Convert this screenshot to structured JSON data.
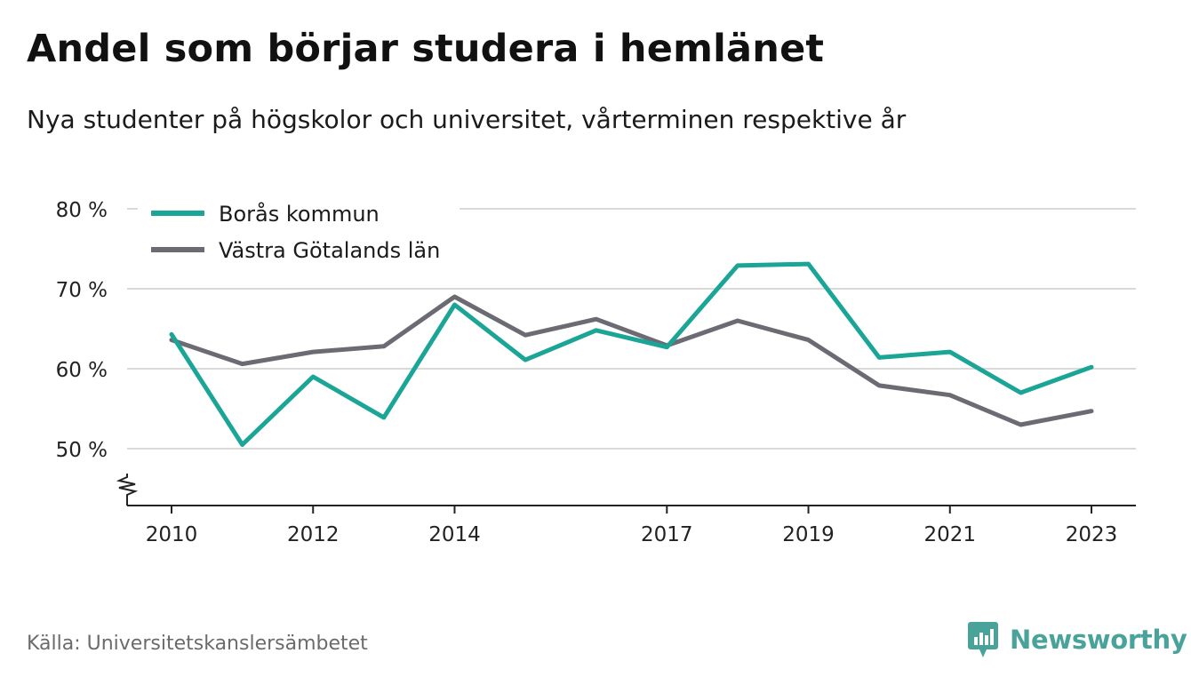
{
  "title": "Andel som börjar studera i hemlänet",
  "subtitle": "Nya studenter på högskolor och universitet, vårterminen respektive år",
  "source": "Källa: Universitetskanslersämbetet",
  "brand": "Newsworthy",
  "colors": {
    "boras": "#1aa597",
    "vg": "#6c6b74",
    "grid": "#d9d9d9",
    "axis": "#222222",
    "brand": "#4aa39a"
  },
  "chart_data": {
    "type": "line",
    "title": "Andel som börjar studera i hemlänet",
    "subtitle": "Nya studenter på högskolor och universitet, vårterminen respektive år",
    "x": [
      2010,
      2011,
      2012,
      2013,
      2014,
      2015,
      2016,
      2017,
      2018,
      2019,
      2020,
      2021,
      2022,
      2023
    ],
    "x_tick_labels": [
      "2010",
      "2012",
      "2014",
      "2017",
      "2019",
      "2021",
      "2023"
    ],
    "x_tick_values": [
      2010,
      2012,
      2014,
      2017,
      2019,
      2021,
      2023
    ],
    "y_tick_labels": [
      "50 %",
      "60 %",
      "70 %",
      "80 %"
    ],
    "y_tick_values": [
      50,
      60,
      70,
      80
    ],
    "ylim": [
      43,
      80
    ],
    "grid": true,
    "y_axis_break": true,
    "legend_position": "top-left",
    "series": [
      {
        "name": "Borås kommun",
        "color_key": "boras",
        "values": [
          64.3,
          50.5,
          59.0,
          53.9,
          68.0,
          61.1,
          64.8,
          62.7,
          72.9,
          73.1,
          61.4,
          62.1,
          57.0,
          60.2
        ]
      },
      {
        "name": "Västra Götalands län",
        "color_key": "vg",
        "values": [
          63.6,
          60.6,
          62.1,
          62.8,
          69.0,
          64.2,
          66.2,
          62.9,
          66.0,
          63.6,
          57.9,
          56.7,
          53.0,
          54.7
        ]
      }
    ]
  }
}
